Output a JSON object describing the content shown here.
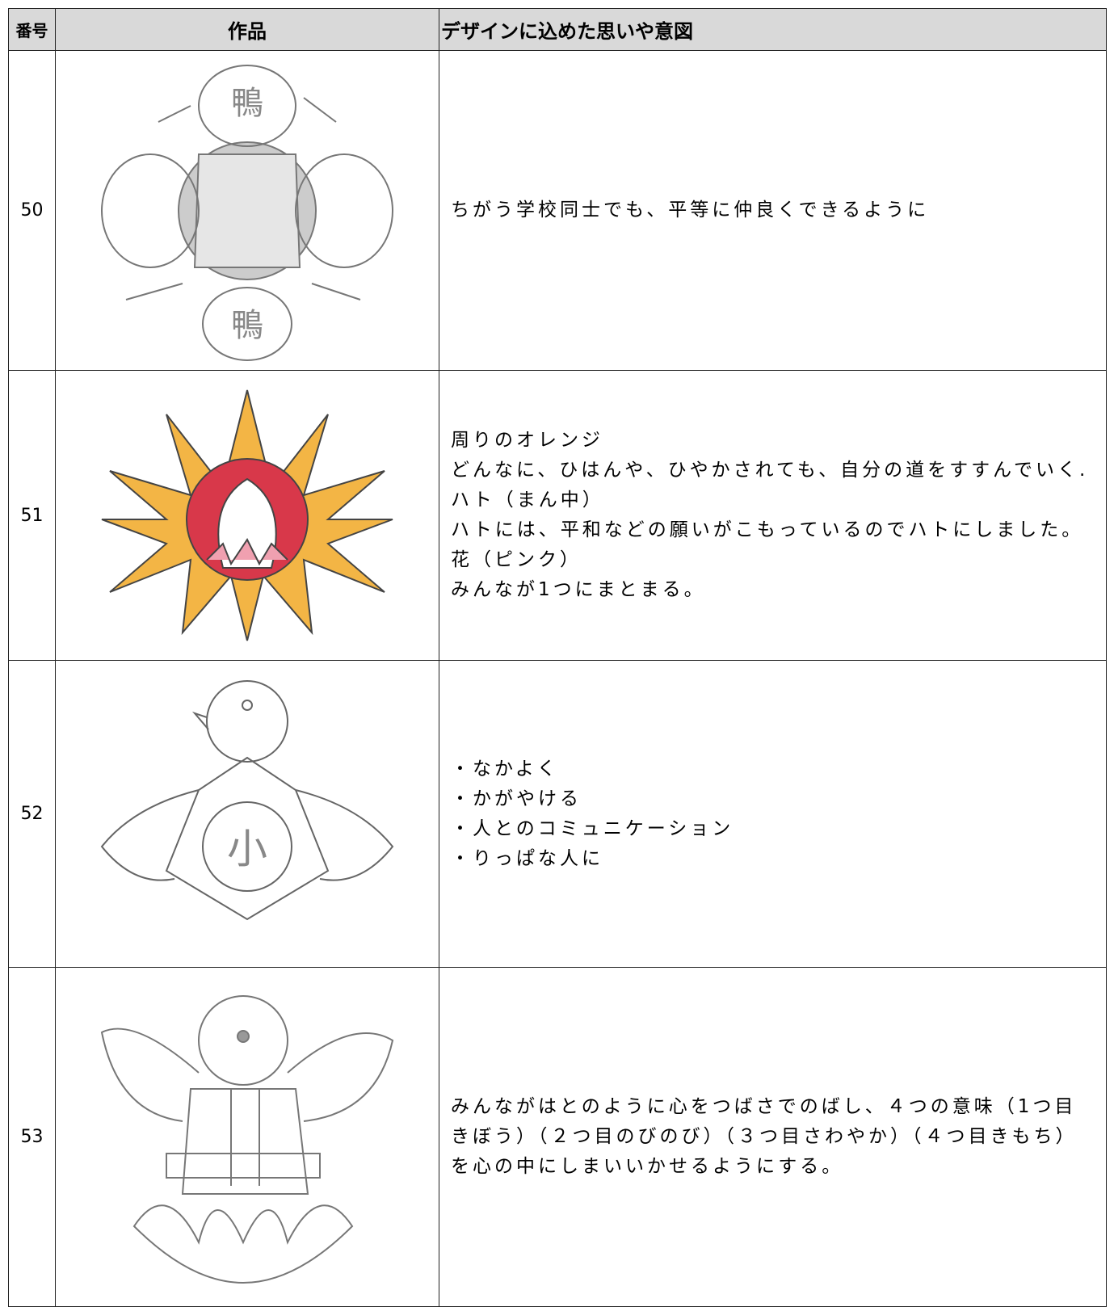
{
  "table": {
    "header": [
      "番号",
      "作品",
      "デザインに込めた思いや意図"
    ],
    "rows": [
      {
        "number": "50",
        "lines": [
          "ちがう学校同士でも、平等に仲良くできるように"
        ]
      },
      {
        "number": "51",
        "lines": [
          "周りのオレンジ",
          "どんなに、ひはんや、ひやかされても、自分の道をすすんでいく.",
          "ハト（まん中）",
          "ハトには、平和などの願いがこもっているのでハトにしました。",
          "花（ピンク）",
          "みんなが1つにまとまる。"
        ]
      },
      {
        "number": "52",
        "lines": [
          "・なかよく",
          "・かがやける",
          "・人とのコミュニケーション",
          "・りっぱな人に"
        ]
      },
      {
        "number": "53",
        "lines": [
          "みんながはとのように心をつばさでのばし、４つの意味（1つ目きぼう）（２つ目のびのび）（３つ目さわやか）（４つ目きもち）を心の中にしまいいかせるようにする。"
        ]
      }
    ]
  }
}
